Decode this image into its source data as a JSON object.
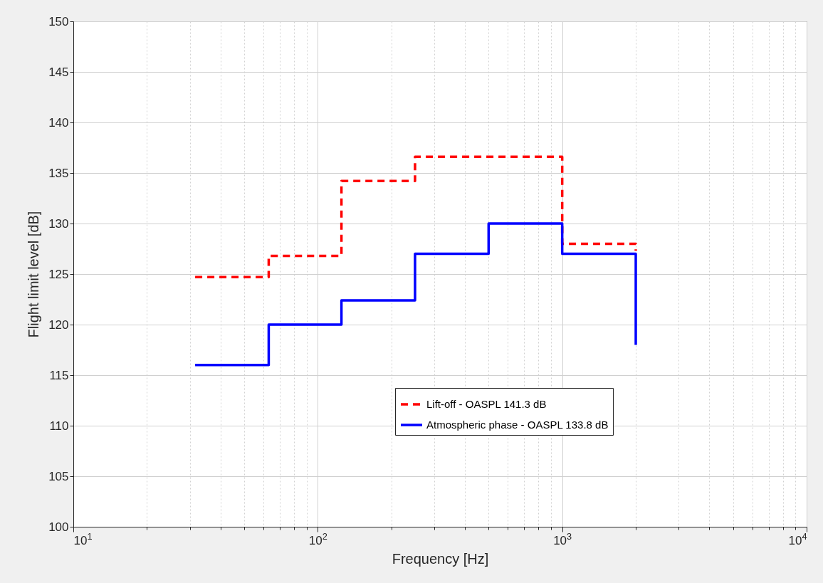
{
  "chart_data": {
    "type": "step",
    "xlabel": "Frequency [Hz]",
    "ylabel": "Flight limit level [dB]",
    "x": [
      31.5,
      63,
      125,
      250,
      500,
      1000,
      2000
    ],
    "series": [
      {
        "name": "Lift-off - OASPL 141.3 dB",
        "color": "#ff0000",
        "line_style": "dashed",
        "values": [
          124.7,
          126.8,
          134.2,
          136.6,
          136.6,
          128,
          127.3
        ]
      },
      {
        "name": "Atmospheric phase - OASPL 133.8 dB",
        "color": "#0000ff",
        "line_style": "solid",
        "values": [
          116,
          120,
          122.4,
          127,
          130,
          127,
          118
        ]
      }
    ],
    "log": "x",
    "xlim": [
      10,
      10000
    ],
    "xticks": [
      {
        "value": 10,
        "label": "10$^{1}$"
      },
      {
        "value": 20,
        "label": null
      },
      {
        "value": 30,
        "label": null
      },
      {
        "value": 40,
        "label": null
      },
      {
        "value": 50,
        "label": null
      },
      {
        "value": 60,
        "label": null
      },
      {
        "value": 70,
        "label": null
      },
      {
        "value": 80,
        "label": null
      },
      {
        "value": 90,
        "label": null
      },
      {
        "value": 100,
        "label": "10$^{2}$"
      },
      {
        "value": 200,
        "label": null
      },
      {
        "value": 300,
        "label": null
      },
      {
        "value": 400,
        "label": null
      },
      {
        "value": 500,
        "label": null
      },
      {
        "value": 600,
        "label": null
      },
      {
        "value": 700,
        "label": null
      },
      {
        "value": 800,
        "label": null
      },
      {
        "value": 900,
        "label": null
      },
      {
        "value": 1000,
        "label": "10$^{3}$"
      },
      {
        "value": 2000,
        "label": null
      },
      {
        "value": 3000,
        "label": null
      },
      {
        "value": 4000,
        "label": null
      },
      {
        "value": 5000,
        "label": null
      },
      {
        "value": 6000,
        "label": null
      },
      {
        "value": 7000,
        "label": null
      },
      {
        "value": 8000,
        "label": null
      },
      {
        "value": 9000,
        "label": null
      },
      {
        "value": 10000,
        "label": "10$^{4}$"
      }
    ],
    "ylim": [
      100,
      150
    ],
    "yticks": [
      100,
      105,
      110,
      115,
      120,
      125,
      130,
      135,
      140,
      145,
      150
    ],
    "grid": true,
    "legend": "bottom right"
  }
}
